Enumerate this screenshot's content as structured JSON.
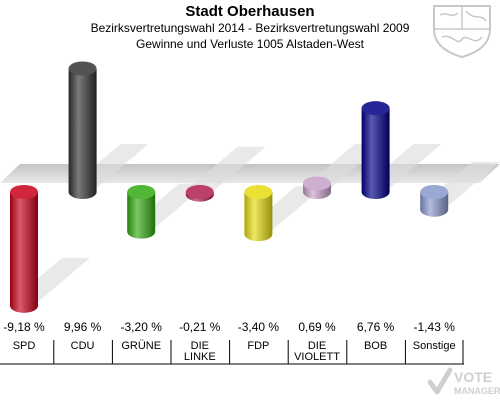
{
  "header": {
    "title": "Stadt Oberhausen",
    "subtitle1": "Bezirksvertretungswahl 2014 - Bezirksvertretungswahl 2009",
    "subtitle2": "Gewinne und Verluste 1005 Alstaden-West"
  },
  "watermark": {
    "line1": "VOTE",
    "line2": "MANAGER"
  },
  "chart_data": {
    "type": "bar",
    "categories": [
      "SPD",
      "CDU",
      "GRÜNE",
      "DIE LINKE",
      "FDP",
      "DIE VIOLETT",
      "BOB",
      "Sonstige"
    ],
    "category_lines": [
      [
        "SPD"
      ],
      [
        "CDU"
      ],
      [
        "GRÜNE"
      ],
      [
        "DIE",
        "LINKE"
      ],
      [
        "FDP"
      ],
      [
        "DIE",
        "VIOLETT"
      ],
      [
        "BOB"
      ],
      [
        "Sonstige"
      ]
    ],
    "values": [
      -9.18,
      9.96,
      -3.2,
      -0.21,
      -3.4,
      0.69,
      6.76,
      -1.43
    ],
    "value_labels": [
      "-9,18 %",
      "9,96 %",
      "-3,20 %",
      "-0,21 %",
      "-3,40 %",
      "0,69 %",
      "6,76 %",
      "-1,43 %"
    ],
    "colors": [
      "#c8001a",
      "#333333",
      "#33aa11",
      "#b02050",
      "#e6dc10",
      "#c8a0c8",
      "#000088",
      "#8899cc"
    ],
    "ylim": [
      -10,
      10
    ]
  }
}
